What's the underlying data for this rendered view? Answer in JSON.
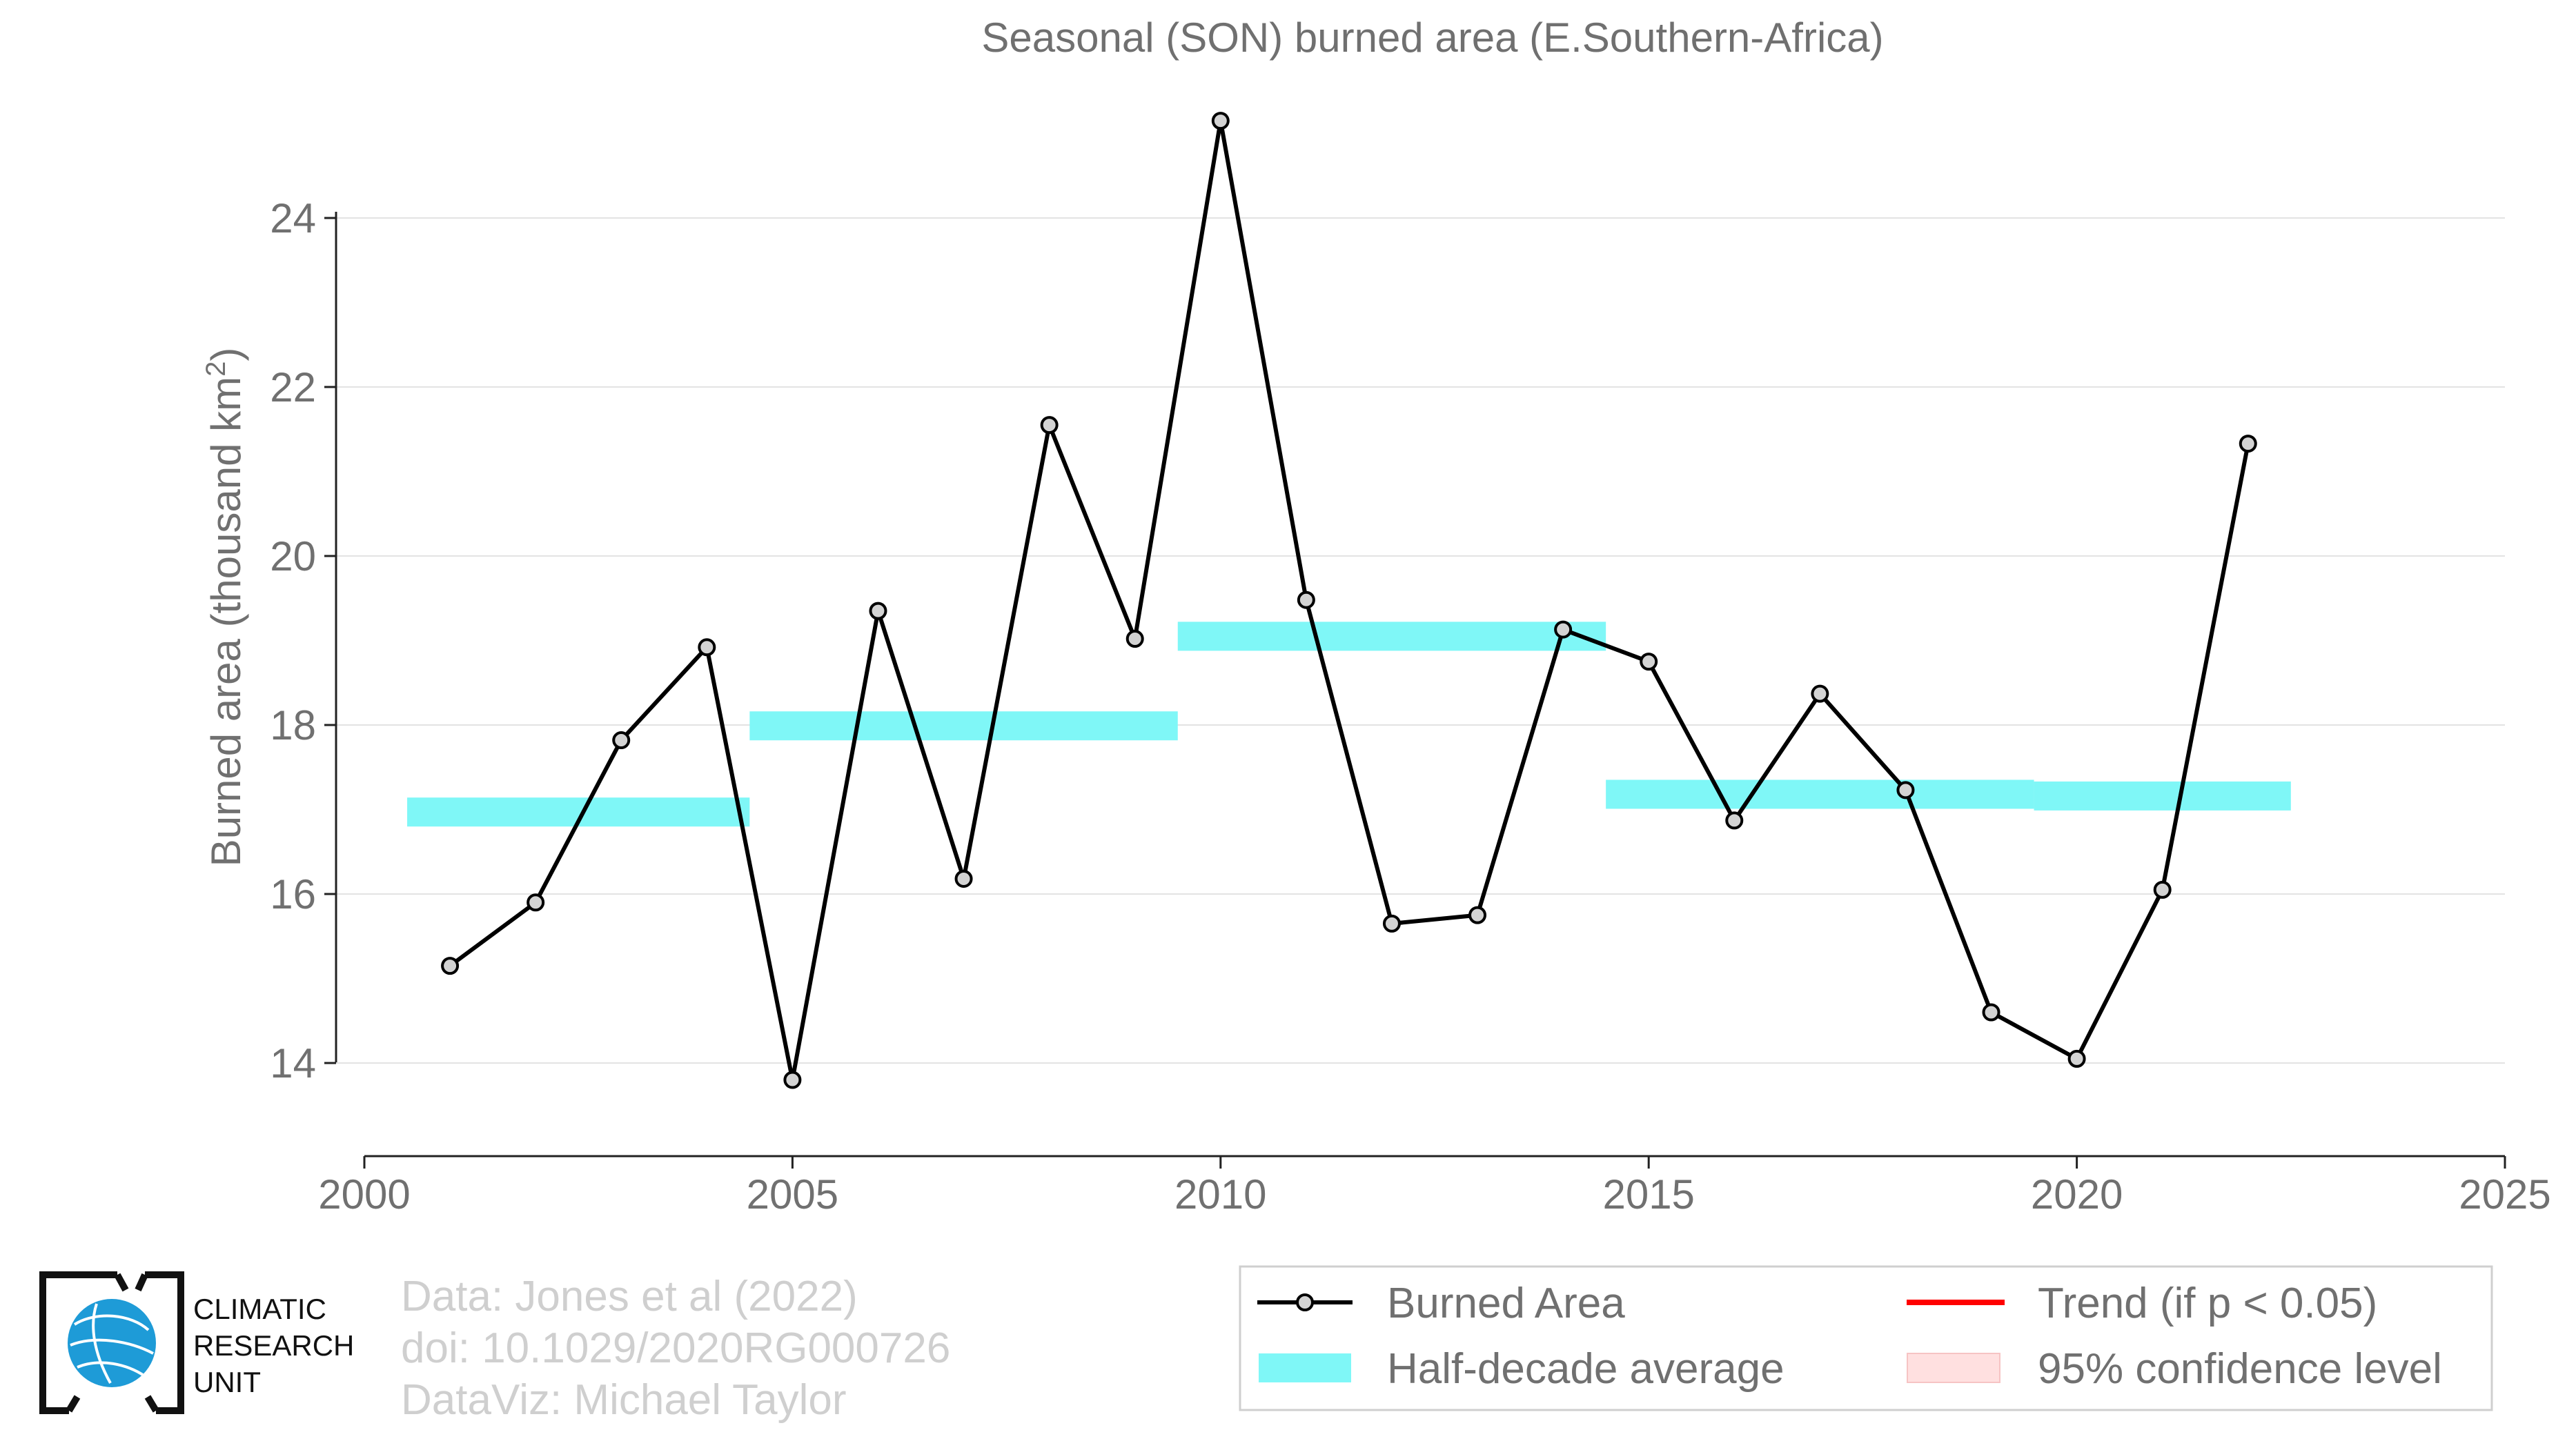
{
  "chart_data": {
    "type": "line",
    "title": "Seasonal (SON) burned area (E.Southern-Africa)",
    "xlabel": "",
    "ylabel": "Burned area (thousand km",
    "ylabel_sup": "2",
    "ylabel_end": ")",
    "xlim": [
      2000,
      2025
    ],
    "ylim": [
      12.9,
      25.6
    ],
    "xticks": [
      2000,
      2005,
      2010,
      2015,
      2020,
      2025
    ],
    "yticks": [
      14,
      16,
      18,
      20,
      22,
      24
    ],
    "grid": true,
    "series": [
      {
        "name": "Burned Area",
        "x": [
          2001,
          2002,
          2003,
          2004,
          2005,
          2006,
          2007,
          2008,
          2009,
          2010,
          2011,
          2012,
          2013,
          2014,
          2015,
          2016,
          2017,
          2018,
          2019,
          2020,
          2021,
          2022
        ],
        "y": [
          15.15,
          15.9,
          17.82,
          18.92,
          13.8,
          19.35,
          16.18,
          21.55,
          19.02,
          25.15,
          19.48,
          15.65,
          15.75,
          19.13,
          18.75,
          16.87,
          18.37,
          17.23,
          14.6,
          14.05,
          16.05,
          21.33
        ],
        "color": "#000000",
        "marker_fill": "#d3d3d3"
      },
      {
        "name": "Half-decade average",
        "color": "#7ff7f7",
        "segments": [
          {
            "x0": 2000.5,
            "x1": 2004.5,
            "y": 16.97
          },
          {
            "x0": 2004.5,
            "x1": 2009.5,
            "y": 17.99
          },
          {
            "x0": 2009.5,
            "x1": 2014.5,
            "y": 19.05
          },
          {
            "x0": 2014.5,
            "x1": 2019.5,
            "y": 17.18
          },
          {
            "x0": 2019.5,
            "x1": 2022.5,
            "y": 17.16
          }
        ]
      }
    ],
    "legend": {
      "placement": "bottom-right",
      "entries": [
        {
          "label": "Burned Area",
          "kind": "line-marker",
          "color": "#000000"
        },
        {
          "label": "Trend (if p < 0.05)",
          "kind": "line",
          "color": "#ff0000"
        },
        {
          "label": "Half-decade average",
          "kind": "patch",
          "color": "#7ff7f7"
        },
        {
          "label": "95% confidence level",
          "kind": "patch",
          "color": "#ffe0e0"
        }
      ]
    }
  },
  "credits": {
    "line1": "Data: Jones et al (2022)",
    "line2": "doi: 10.1029/2020RG000726",
    "line3": "DataViz: Michael Taylor"
  },
  "logo": {
    "line1": "CLIMATIC",
    "line2": "RESEARCH",
    "line3": "UNIT",
    "globe_color": "#1e9bd7"
  }
}
